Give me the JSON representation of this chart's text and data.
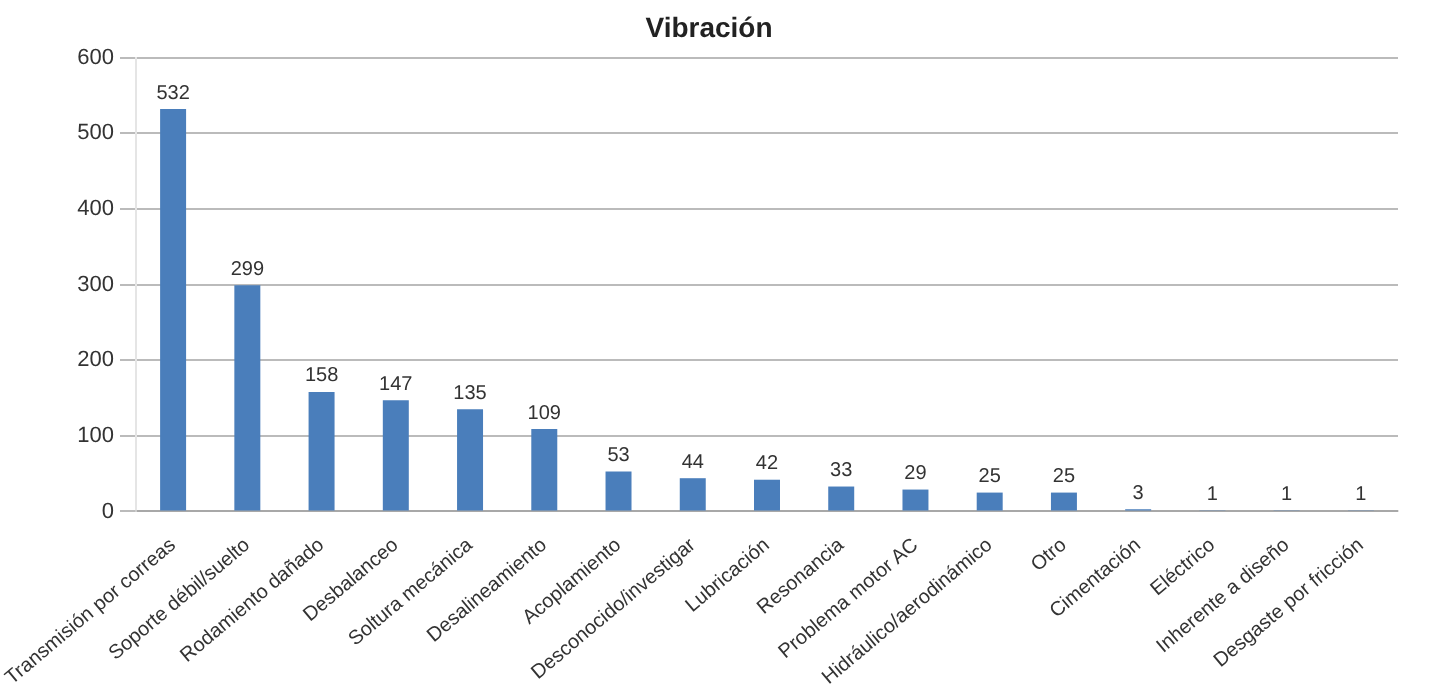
{
  "chart_data": {
    "type": "bar",
    "title": "Vibración",
    "categories": [
      "Transmisión por correas",
      "Soporte débil/suelto",
      "Rodamiento dañado",
      "Desbalanceo",
      "Soltura mecánica",
      "Desalineamiento",
      "Acoplamiento",
      "Desconocido/investigar",
      "Lubricación",
      "Resonancia",
      "Problema motor AC",
      "Hidráulico/aerodinámico",
      "Otro",
      "Cimentación",
      "Eléctrico",
      "Inherente a diseño",
      "Desgaste por fricción"
    ],
    "values": [
      532,
      299,
      158,
      147,
      135,
      109,
      53,
      44,
      42,
      33,
      29,
      25,
      25,
      3,
      1,
      1,
      1
    ],
    "color": "#4a7ebb",
    "ylim": [
      0,
      600
    ],
    "yticks": [
      0,
      100,
      200,
      300,
      400,
      500,
      600
    ],
    "grid": "y",
    "data_labels": true
  }
}
